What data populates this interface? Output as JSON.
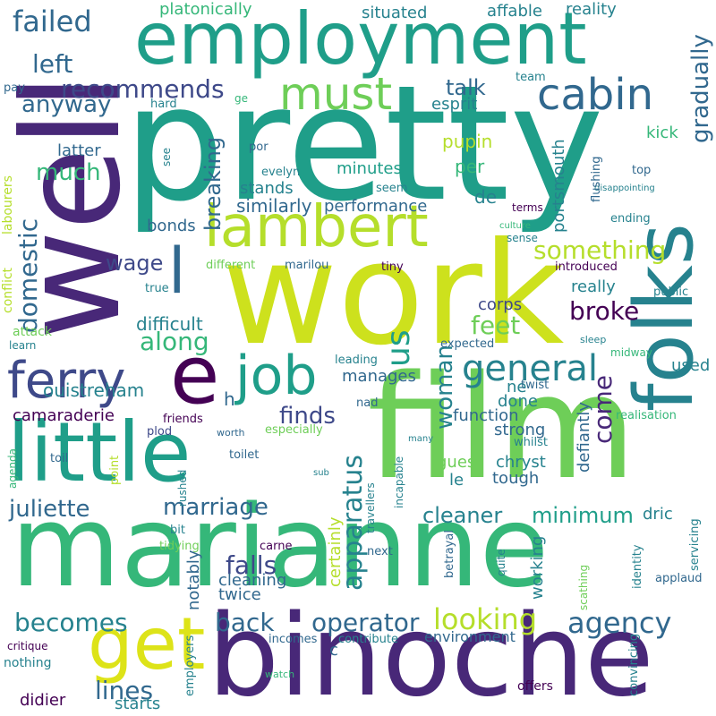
{
  "palette": {
    "background": "#ffffff",
    "dark_purple": "#440154",
    "indigo": "#482878",
    "blue": "#3e4989",
    "steel_blue": "#31688e",
    "teal_blue": "#26828e",
    "teal": "#1f9e89",
    "green": "#35b779",
    "light_green": "#6ece58",
    "lime": "#b5de2b",
    "yellow": "#fde725"
  },
  "words": {
    "pretty": "pretty",
    "well": "well",
    "work": "work",
    "film": "film",
    "marianne": "marianne",
    "binoche": "binoche",
    "employment": "employment",
    "folks": "folks",
    "little": "little",
    "lambert": "lambert",
    "get": "get",
    "cabin": "cabin",
    "must": "must",
    "job": "job",
    "ferry": "ferry",
    "e": "e",
    "l": "l",
    "general": "general",
    "failed": "failed",
    "left": "left",
    "recommends": "recommends",
    "anyway": "anyway",
    "much": "much",
    "latter": "latter",
    "domestic": "domestic",
    "wage": "wage",
    "bonds": "bonds",
    "breaking": "breaking",
    "similarly": "similarly",
    "stands": "stands",
    "minutes": "minutes",
    "performance": "performance",
    "de": "de",
    "pupin": "pupin",
    "per": "per",
    "talk": "talk",
    "esprit": "esprit",
    "something": "something",
    "along": "along",
    "difficult": "difficult",
    "broke": "broke",
    "feet": "feet",
    "us": "us",
    "ouistreham": "ouistreham",
    "camaraderie": "camaraderie",
    "juliette": "juliette",
    "marriage": "marriage",
    "finds": "finds",
    "woman": "woman",
    "come": "come",
    "apparatus": "apparatus",
    "cleaner": "cleaner",
    "minimum": "minimum",
    "falls": "falls",
    "becomes": "becomes",
    "operator": "operator",
    "looking": "looking",
    "agency": "agency",
    "back": "back",
    "lines": "lines",
    "didier": "didier",
    "starts": "starts",
    "gradually": "gradually",
    "kick": "kick",
    "portsmouth": "portsmouth",
    "platonically": "platonically",
    "situated": "situated",
    "affable": "affable",
    "reality": "reality",
    "team": "team",
    "pay": "pay",
    "ge": "ge",
    "hard": "hard",
    "por": "por",
    "see": "see",
    "evelyn": "evelyn",
    "seem": "seem",
    "terms": "terms",
    "culture": "culture",
    "sense": "sense",
    "top": "top",
    "disappointing": "disappointing",
    "ending": "ending",
    "flushing": "flushing",
    "labourers": "labourers",
    "conflict": "conflict",
    "attack": "attack",
    "learn": "learn",
    "different": "different",
    "marilou": "marilou",
    "tiny": "tiny",
    "introduced": "introduced",
    "true": "true",
    "really": "really",
    "public": "public",
    "corps": "corps",
    "expected": "expected",
    "sleep": "sleep",
    "midway": "midway",
    "leading": "leading",
    "manages": "manages",
    "used": "used",
    "h": "h",
    "nad": "nad",
    "done": "done",
    "ne": "ne",
    "function": "function",
    "strong": "strong",
    "friends": "friends",
    "plod": "plod",
    "worth": "worth",
    "especially": "especially",
    "many": "many",
    "realisation": "realisation",
    "whilst": "whilst",
    "defiantly": "defiantly",
    "twist": "twist",
    "agenda": "agenda",
    "toil": "toil",
    "point": "point",
    "toilet": "toilet",
    "guest": "guest",
    "chryst": "chryst",
    "incapable": "incapable",
    "le": "le",
    "tough": "tough",
    "dric": "dric",
    "servicing": "servicing",
    "rushed": "rushed",
    "sub": "sub",
    "travellers": "travellers",
    "bit": "bit",
    "tidying": "tidying",
    "carne": "carne",
    "next": "next",
    "certainly": "certainly",
    "notably": "notably",
    "cleaning": "cleaning",
    "twice": "twice",
    "working": "working",
    "betrayal": "betrayal",
    "quite": "quite",
    "identity": "identity",
    "applaud": "applaud",
    "scathing": "scathing",
    "critique": "critique",
    "nothing": "nothing",
    "employers": "employers",
    "incomes": "incomes",
    "contribute": "contribute",
    "environment": "environment",
    "c": "c",
    "watch": "watch",
    "convincing": "convincing",
    "offers": "offers"
  }
}
